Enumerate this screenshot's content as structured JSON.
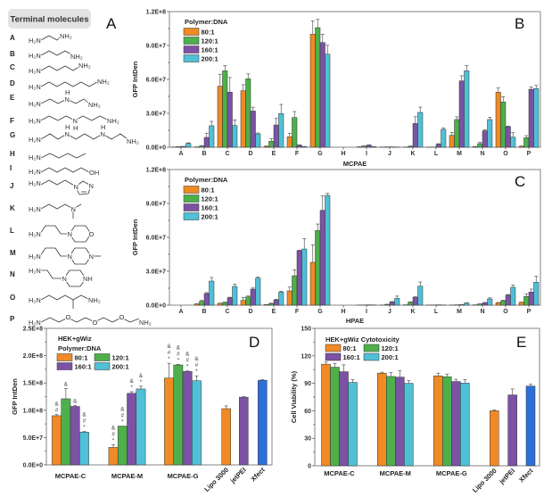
{
  "panel_a": {
    "title": "Terminal molecules",
    "label": "A",
    "molecules": [
      {
        "letter": "A",
        "atoms": [
          "H₂N",
          "NH₂"
        ]
      },
      {
        "letter": "B",
        "atoms": [
          "H₂N",
          "NH₂"
        ]
      },
      {
        "letter": "C",
        "atoms": [
          "H₂N",
          "NH₂"
        ]
      },
      {
        "letter": "D",
        "atoms": [
          "H₂N",
          "NH₂"
        ]
      },
      {
        "letter": "E",
        "atoms": [
          "H₂N",
          "N",
          "H",
          "NH₂"
        ]
      },
      {
        "letter": "F",
        "atoms": [
          "H₂N",
          "N",
          "H",
          "NH₂"
        ]
      },
      {
        "letter": "G",
        "atoms": [
          "H₂N",
          "N",
          "H",
          "N",
          "H",
          "NH₂"
        ]
      },
      {
        "letter": "H",
        "atoms": [
          "H₂N"
        ]
      },
      {
        "letter": "I",
        "atoms": [
          "H₂N",
          "OH"
        ]
      },
      {
        "letter": "J",
        "atoms": [
          "H₂N",
          "N",
          "N"
        ]
      },
      {
        "letter": "K",
        "atoms": [
          "H₂N",
          "N"
        ]
      },
      {
        "letter": "L",
        "atoms": [
          "H₂N",
          "N",
          "O"
        ]
      },
      {
        "letter": "M",
        "atoms": [
          "H₂N",
          "N",
          "N"
        ]
      },
      {
        "letter": "N",
        "atoms": [
          "H₂N",
          "N",
          "NH"
        ]
      },
      {
        "letter": "O",
        "atoms": [
          "H₂N",
          "NH₂"
        ]
      },
      {
        "letter": "P",
        "atoms": [
          "H₂N",
          "O",
          "O",
          "O",
          "NH₂"
        ]
      }
    ]
  },
  "chart_data": [
    {
      "type": "bar",
      "panel": "B",
      "legend_title_lines": [
        "Polymer:DNA"
      ],
      "xlabel": "MCPAE",
      "ylabel": "GFP IntDen",
      "ylim": [
        0,
        120000000.0
      ],
      "yticks": [
        0,
        30000000.0,
        60000000.0,
        90000000.0,
        120000000.0
      ],
      "ytick_labels": [
        "0.0E+0",
        "3.0E+7",
        "6.0E+7",
        "9.0E+7",
        "1.2E+8"
      ],
      "categories": [
        "A",
        "B",
        "C",
        "D",
        "E",
        "F",
        "G",
        "H",
        "I",
        "J",
        "K",
        "L",
        "M",
        "N",
        "O",
        "P"
      ],
      "series": [
        {
          "name": "80:1",
          "color": "#f08a24",
          "values": [
            200000.0,
            300000.0,
            54000000.0,
            50000000.0,
            800000.0,
            9200000.0,
            100000000.0,
            0,
            300000.0,
            200000.0,
            200000.0,
            100000.0,
            10500000.0,
            500000.0,
            48700000.0,
            800000.0
          ],
          "errors": [
            0,
            0,
            10600000.0,
            5300000.0,
            300000.0,
            3200000.0,
            11800000.0,
            0,
            100000.0,
            0,
            0,
            0,
            2600000.0,
            200000.0,
            3700000.0,
            300000.0
          ]
        },
        {
          "name": "120:1",
          "color": "#4db04a",
          "values": [
            500000.0,
            1000000.0,
            67600000.0,
            60500000.0,
            5300000.0,
            26300000.0,
            105800000.0,
            0,
            1000000.0,
            300000.0,
            800000.0,
            200000.0,
            24500000.0,
            3200000.0,
            40000000.0,
            8400000.0
          ],
          "errors": [
            0,
            300000.0,
            4700000.0,
            4400000.0,
            2400000.0,
            5300000.0,
            7300000.0,
            0,
            200000.0,
            0,
            300000.0,
            0,
            2400000.0,
            1300000.0,
            4700000.0,
            1800000.0
          ]
        },
        {
          "name": "160:1",
          "color": "#7c52a4",
          "values": [
            800000.0,
            8700000.0,
            48700000.0,
            32000000.0,
            19700000.0,
            1800000.0,
            92600000.0,
            0,
            1800000.0,
            300000.0,
            21000000.0,
            2600000.0,
            58700000.0,
            14500000.0,
            18200000.0,
            51300000.0
          ],
          "errors": [
            0,
            3700000.0,
            13000000.0,
            3400000.0,
            5800000.0,
            300000.0,
            7300000.0,
            0,
            300000.0,
            0,
            6000000.0,
            500000.0,
            4500000.0,
            1000000.0,
            500000.0,
            2100000.0
          ]
        },
        {
          "name": "200:1",
          "color": "#4fc0d6",
          "values": [
            3400000.0,
            19000000.0,
            19200000.0,
            11800000.0,
            29800000.0,
            500000.0,
            82300000.0,
            0,
            500000.0,
            200000.0,
            30800000.0,
            15800000.0,
            67600000.0,
            24500000.0,
            8900000.0,
            51900000.0
          ],
          "errors": [
            500000.0,
            3900000.0,
            5000000.0,
            800000.0,
            8100000.0,
            200000.0,
            7900000.0,
            0,
            100000.0,
            0,
            4700000.0,
            1300000.0,
            4700000.0,
            2000000.0,
            4000000.0,
            2800000.0
          ]
        }
      ],
      "legend": "top-left",
      "grid": false
    },
    {
      "type": "bar",
      "panel": "C",
      "legend_title_lines": [
        "Polymer:DNA"
      ],
      "xlabel": "HPAE",
      "ylabel": "GFP IntDen",
      "ylim": [
        0,
        120000000.0
      ],
      "yticks": [
        0,
        30000000.0,
        60000000.0,
        90000000.0,
        120000000.0
      ],
      "ytick_labels": [
        "0.0E+0",
        "3.0E+7",
        "6.0E+7",
        "9.0E+7",
        "1.2E+8"
      ],
      "categories": [
        "A",
        "B",
        "C",
        "D",
        "E",
        "F",
        "G",
        "H",
        "I",
        "J",
        "K",
        "L",
        "M",
        "N",
        "O",
        "P"
      ],
      "series": [
        {
          "name": "80:1",
          "color": "#f08a24",
          "values": [
            0,
            1000000.0,
            1600000.0,
            4200000.0,
            500000.0,
            12600000.0,
            37900000.0,
            0,
            100000.0,
            100000.0,
            300000.0,
            100000.0,
            100000.0,
            300000.0,
            2100000.0,
            2400000.0
          ],
          "errors": [
            0,
            200000.0,
            200000.0,
            2600000.0,
            100000.0,
            3400000.0,
            15500000.0,
            0,
            0,
            0,
            0,
            0,
            0,
            0,
            300000.0,
            300000.0
          ]
        },
        {
          "name": "120:1",
          "color": "#4db04a",
          "values": [
            0,
            3400000.0,
            2400000.0,
            7300000.0,
            1500000.0,
            26000000.0,
            66000000.0,
            0,
            200000.0,
            700000.0,
            2600000.0,
            200000.0,
            300000.0,
            1000000.0,
            3900000.0,
            7700000.0
          ],
          "errors": [
            0,
            800000.0,
            300000.0,
            800000.0,
            300000.0,
            5300000.0,
            5800000.0,
            0,
            0,
            100000.0,
            300000.0,
            0,
            0,
            200000.0,
            500000.0,
            2400000.0
          ]
        },
        {
          "name": "160:1",
          "color": "#7c52a4",
          "values": [
            0,
            10300000.0,
            6500000.0,
            14200000.0,
            4700000.0,
            48200000.0,
            83900000.0,
            0,
            300000.0,
            2900000.0,
            7100000.0,
            300000.0,
            500000.0,
            2100000.0,
            8900000.0,
            11600000.0
          ],
          "errors": [
            0,
            800000.0,
            500000.0,
            1000000.0,
            500000.0,
            500000.0,
            13000000.0,
            0,
            0,
            300000.0,
            300000.0,
            0,
            0,
            300000.0,
            500000.0,
            2600000.0
          ]
        },
        {
          "name": "200:1",
          "color": "#4fc0d6",
          "values": [
            0,
            21300000.0,
            16600000.0,
            23900000.0,
            11600000.0,
            49700000.0,
            97100000.0,
            0,
            200000.0,
            6000000.0,
            16800000.0,
            200000.0,
            1800000.0,
            5500000.0,
            15800000.0,
            20300000.0
          ],
          "errors": [
            0,
            3200000.0,
            2000000.0,
            1000000.0,
            800000.0,
            9200000.0,
            1800000.0,
            0,
            0,
            2000000.0,
            3700000.0,
            0,
            300000.0,
            1000000.0,
            2100000.0,
            5300000.0
          ]
        }
      ],
      "legend": "top-left",
      "grid": false
    },
    {
      "type": "bar",
      "panel": "D",
      "legend_title_lines": [
        "HEK+gWiz",
        "Polymer:DNA"
      ],
      "xlabel": "",
      "ylabel": "GFP IntDen",
      "ylim": [
        0,
        250000000.0
      ],
      "yticks": [
        0,
        50000000.0,
        100000000.0,
        150000000.0,
        200000000.0,
        250000000.0
      ],
      "ytick_labels": [
        "0.0E+0",
        "5.0E+7",
        "1.0E+8",
        "1.5E+8",
        "2.0E+8",
        "2.5E+8"
      ],
      "categories": [
        "MCPAE-C",
        "MCPAE-M",
        "MCPAE-G"
      ],
      "series": [
        {
          "name": "80:1",
          "color": "#f08a24",
          "values": [
            90000000.0,
            32000000.0,
            159000000.0
          ],
          "errors": [
            2000000.0,
            5000000.0,
            27000000.0
          ],
          "annotations": [
            [
              "&",
              "#"
            ],
            [
              "&",
              "#",
              "*"
            ],
            [
              "&",
              "#",
              "*"
            ]
          ]
        },
        {
          "name": "120:1",
          "color": "#4db04a",
          "values": [
            121000000.0,
            71000000.0,
            183000000.0
          ],
          "errors": [
            19000000.0,
            0,
            1000000.0
          ],
          "annotations": [
            [
              "&"
            ],
            [
              "&",
              "#",
              "*"
            ],
            [
              "&",
              "#",
              "*"
            ]
          ]
        },
        {
          "name": "160:1",
          "color": "#7c52a4",
          "values": [
            107000000.0,
            131000000.0,
            171000000.0
          ],
          "errors": [
            2000000.0,
            3000000.0,
            1000000.0
          ],
          "annotations": [
            [
              "&"
            ],
            [
              "&",
              "*"
            ],
            [
              "&",
              "#",
              "*"
            ]
          ]
        },
        {
          "name": "200:1",
          "color": "#4fc0d6",
          "values": [
            60000000.0,
            139000000.0,
            154000000.0
          ],
          "errors": [
            1000000.0,
            5000000.0,
            9000000.0
          ],
          "annotations": [
            [
              "&",
              "#",
              "*"
            ],
            [
              "&",
              "*"
            ],
            [
              "&",
              "#",
              "*"
            ]
          ]
        }
      ],
      "controls": [
        {
          "name": "Lipo 3000",
          "value": 103000000.0,
          "error": 5000000.0,
          "color": "#f08a24"
        },
        {
          "name": "jetPEI",
          "value": 124000000.0,
          "error": 1000000.0,
          "color": "#7c52a4"
        },
        {
          "name": "Xfect",
          "value": 155000000.0,
          "error": 1000000.0,
          "color": "#2c6fd6"
        }
      ],
      "legend": "top-left",
      "grid": false
    },
    {
      "type": "bar",
      "panel": "E",
      "legend_title_lines": [
        "HEK+gWiz Cytotoxicity"
      ],
      "xlabel": "",
      "ylabel": "Cell Viability (%)",
      "ylim": [
        0,
        150
      ],
      "yticks": [
        0,
        30,
        60,
        90,
        120,
        150
      ],
      "ytick_labels": [
        "0",
        "30",
        "60",
        "90",
        "120",
        "150"
      ],
      "categories": [
        "MCPAE-C",
        "MCPAE-M",
        "MCPAE-G"
      ],
      "series": [
        {
          "name": "80:1",
          "color": "#f08a24",
          "values": [
            110.9,
            101.1,
            98.2
          ],
          "errors": [
            2.3,
            1.0,
            2.9
          ]
        },
        {
          "name": "120:1",
          "color": "#4db04a",
          "values": [
            107.6,
            97.5,
            97.2
          ],
          "errors": [
            4.2,
            4.2,
            2.9
          ]
        },
        {
          "name": "160:1",
          "color": "#7c52a4",
          "values": [
            102.7,
            96.8,
            92.0
          ],
          "errors": [
            7.5,
            6.8,
            2.3
          ]
        },
        {
          "name": "200:1",
          "color": "#4fc0d6",
          "values": [
            91.0,
            90.0,
            90.3
          ],
          "errors": [
            2.9,
            2.9,
            3.9
          ]
        }
      ],
      "controls": [
        {
          "name": "Lipo 3000",
          "value": 60.0,
          "error": 1.0,
          "color": "#f08a24"
        },
        {
          "name": "jetPEI",
          "value": 77.3,
          "error": 6.5,
          "color": "#7c52a4"
        },
        {
          "name": "Xfect",
          "value": 87.0,
          "error": 2.0,
          "color": "#2c6fd6"
        }
      ],
      "legend": "top-left",
      "grid": false
    }
  ]
}
